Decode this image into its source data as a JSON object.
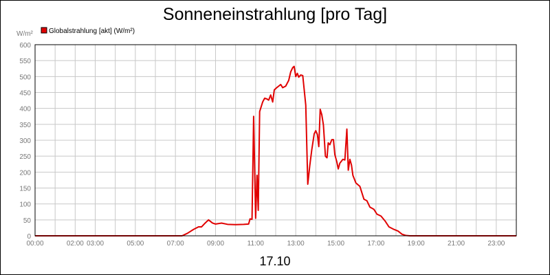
{
  "chart_data": {
    "type": "line",
    "title": "Sonneneinstrahlung [pro Tag]",
    "xlabel": "17.10",
    "ylabel": "W/m²",
    "ylim": [
      0,
      600
    ],
    "y_ticks": [
      "0",
      "50",
      "100",
      "150",
      "200",
      "250",
      "300",
      "350",
      "400",
      "450",
      "500",
      "550",
      "600"
    ],
    "x_range_hours": [
      0,
      24
    ],
    "x_ticks": [
      {
        "hour": 0,
        "label": "00:00"
      },
      {
        "hour": 2,
        "label": "02:00"
      },
      {
        "hour": 3,
        "label": "03:00"
      },
      {
        "hour": 5,
        "label": "05:00"
      },
      {
        "hour": 7,
        "label": "07:00"
      },
      {
        "hour": 9,
        "label": "09:00"
      },
      {
        "hour": 11,
        "label": "11:00"
      },
      {
        "hour": 13,
        "label": "13:00"
      },
      {
        "hour": 15,
        "label": "15:00"
      },
      {
        "hour": 17,
        "label": "17:00"
      },
      {
        "hour": 19,
        "label": "19:00"
      },
      {
        "hour": 21,
        "label": "21:00"
      },
      {
        "hour": 23,
        "label": "23:00"
      }
    ],
    "grid": true,
    "legend_position": "top-left",
    "series": [
      {
        "name": "Globalstrahlung [akt] (W/m²)",
        "color": "#e00000",
        "points": [
          [
            0.0,
            0
          ],
          [
            7.33,
            0
          ],
          [
            7.6,
            8
          ],
          [
            7.9,
            20
          ],
          [
            8.15,
            28
          ],
          [
            8.3,
            28
          ],
          [
            8.45,
            38
          ],
          [
            8.65,
            50
          ],
          [
            8.85,
            40
          ],
          [
            9.0,
            37
          ],
          [
            9.3,
            40
          ],
          [
            9.6,
            36
          ],
          [
            10.0,
            35
          ],
          [
            10.4,
            36
          ],
          [
            10.65,
            37
          ],
          [
            10.72,
            53
          ],
          [
            10.82,
            52
          ],
          [
            10.9,
            375
          ],
          [
            11.0,
            55
          ],
          [
            11.07,
            190
          ],
          [
            11.13,
            80
          ],
          [
            11.2,
            390
          ],
          [
            11.35,
            420
          ],
          [
            11.45,
            432
          ],
          [
            11.55,
            430
          ],
          [
            11.65,
            426
          ],
          [
            11.75,
            442
          ],
          [
            11.85,
            420
          ],
          [
            11.93,
            458
          ],
          [
            12.05,
            465
          ],
          [
            12.15,
            470
          ],
          [
            12.25,
            475
          ],
          [
            12.35,
            465
          ],
          [
            12.5,
            470
          ],
          [
            12.65,
            488
          ],
          [
            12.75,
            515
          ],
          [
            12.85,
            528
          ],
          [
            12.92,
            532
          ],
          [
            13.0,
            500
          ],
          [
            13.08,
            510
          ],
          [
            13.15,
            498
          ],
          [
            13.25,
            505
          ],
          [
            13.35,
            503
          ],
          [
            13.5,
            410
          ],
          [
            13.6,
            162
          ],
          [
            13.7,
            220
          ],
          [
            13.8,
            270
          ],
          [
            13.92,
            320
          ],
          [
            14.0,
            330
          ],
          [
            14.08,
            318
          ],
          [
            14.15,
            280
          ],
          [
            14.22,
            397
          ],
          [
            14.3,
            380
          ],
          [
            14.38,
            348
          ],
          [
            14.48,
            250
          ],
          [
            14.56,
            245
          ],
          [
            14.62,
            292
          ],
          [
            14.7,
            286
          ],
          [
            14.8,
            302
          ],
          [
            14.88,
            302
          ],
          [
            14.95,
            255
          ],
          [
            15.05,
            232
          ],
          [
            15.12,
            210
          ],
          [
            15.2,
            228
          ],
          [
            15.35,
            240
          ],
          [
            15.45,
            238
          ],
          [
            15.55,
            335
          ],
          [
            15.62,
            206
          ],
          [
            15.7,
            240
          ],
          [
            15.78,
            222
          ],
          [
            15.85,
            190
          ],
          [
            16.0,
            166
          ],
          [
            16.2,
            155
          ],
          [
            16.4,
            115
          ],
          [
            16.55,
            110
          ],
          [
            16.7,
            90
          ],
          [
            16.9,
            83
          ],
          [
            17.05,
            68
          ],
          [
            17.25,
            62
          ],
          [
            17.45,
            47
          ],
          [
            17.65,
            28
          ],
          [
            17.9,
            20
          ],
          [
            18.1,
            15
          ],
          [
            18.3,
            5
          ],
          [
            18.5,
            1
          ],
          [
            18.7,
            0
          ],
          [
            24.0,
            0
          ]
        ]
      }
    ]
  }
}
